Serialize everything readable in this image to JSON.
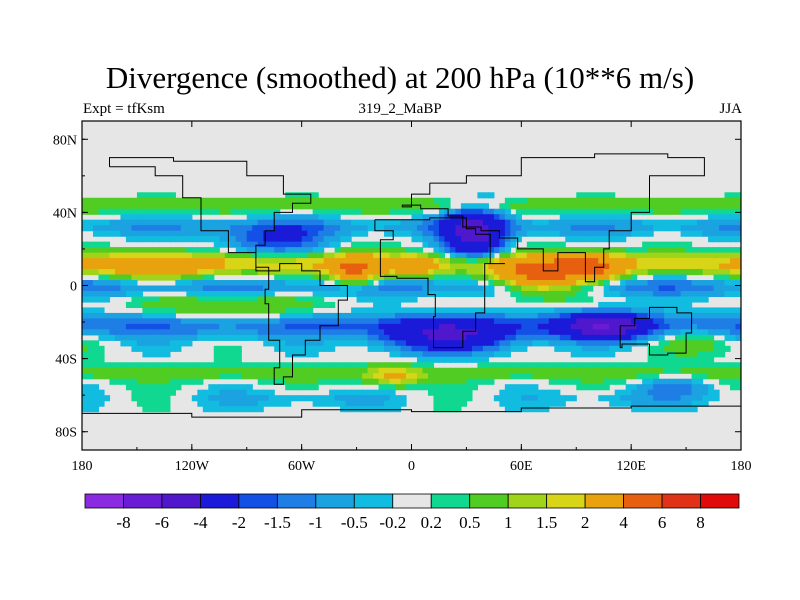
{
  "title": "Divergence (smoothed) at 200 hPa (10**6 m/s)",
  "left_subtitle": "Expt = tfKsm",
  "center_subtitle": "319_2_MaBP",
  "right_subtitle": "JJA",
  "chart_data": {
    "type": "heatmap",
    "variable": "Divergence (smoothed)",
    "level": "200 hPa",
    "units": "10**6 m/s",
    "season": "JJA",
    "lon_range": [
      -180,
      180
    ],
    "lat_range": [
      -90,
      90
    ],
    "x_ticks": [
      {
        "value": -180,
        "label": "180"
      },
      {
        "value": -120,
        "label": "120W"
      },
      {
        "value": -60,
        "label": "60W"
      },
      {
        "value": 0,
        "label": "0"
      },
      {
        "value": 60,
        "label": "60E"
      },
      {
        "value": 120,
        "label": "120E"
      },
      {
        "value": 180,
        "label": "180"
      }
    ],
    "y_ticks": [
      {
        "value": 80,
        "label": "80N"
      },
      {
        "value": 40,
        "label": "40N"
      },
      {
        "value": 0,
        "label": "0"
      },
      {
        "value": -40,
        "label": "40S"
      },
      {
        "value": -80,
        "label": "80S"
      }
    ],
    "levels": [
      -8,
      -6,
      -4,
      -2,
      -1.5,
      -1,
      -0.5,
      -0.2,
      0.2,
      0.5,
      1,
      1.5,
      2,
      4,
      6,
      8
    ],
    "colors": [
      "#8a2be2",
      "#6a1bd6",
      "#5018cc",
      "#1a1ad8",
      "#1250e6",
      "#1e7ee6",
      "#1aa3e0",
      "#12bce0",
      "#e6e6e6",
      "#10d890",
      "#50cc22",
      "#a0d418",
      "#d8d418",
      "#e8a20e",
      "#e66010",
      "#e03218",
      "#e00a0a"
    ],
    "features": [
      {
        "name": "N Pacific / Atlantic band (weak negative)",
        "lon": [
          -180,
          180
        ],
        "lat": [
          28,
          50
        ],
        "value": -0.7
      },
      {
        "name": "Subtropical N belt (weak positive)",
        "lon": [
          -180,
          180
        ],
        "lat": [
          40,
          52
        ],
        "value": 0.6
      },
      {
        "name": "Northern tropical divergence band",
        "lon": [
          -180,
          180
        ],
        "lat": [
          5,
          20
        ],
        "value": 3.0
      },
      {
        "name": "Equatorial convergence band",
        "lon": [
          -180,
          180
        ],
        "lat": [
          -8,
          5
        ],
        "value": -1.6
      },
      {
        "name": "Southern subtropical convergence",
        "lon": [
          -180,
          180
        ],
        "lat": [
          -35,
          -12
        ],
        "value": -1.8
      },
      {
        "name": "Southern mid-latitude positive band",
        "lon": [
          -180,
          180
        ],
        "lat": [
          -58,
          -40
        ],
        "value": 0.8
      },
      {
        "name": "Strong convergence over Africa",
        "lon": [
          20,
          50
        ],
        "lat": [
          15,
          40
        ],
        "value": -4.5
      },
      {
        "name": "Strong divergence over Indian Ocean / S Asia",
        "lon": [
          50,
          100
        ],
        "lat": [
          -5,
          15
        ],
        "value": 5.5
      },
      {
        "name": "Intense convergence S Indian Ocean",
        "lon": [
          80,
          120
        ],
        "lat": [
          -30,
          -15
        ],
        "value": -5.0
      },
      {
        "name": "Divergence over tropical Atlantic",
        "lon": [
          -40,
          -20
        ],
        "lat": [
          0,
          12
        ],
        "value": 4.0
      },
      {
        "name": "Divergence over W Africa",
        "lon": [
          -5,
          10
        ],
        "lat": [
          5,
          15
        ],
        "value": 3.5
      }
    ]
  }
}
